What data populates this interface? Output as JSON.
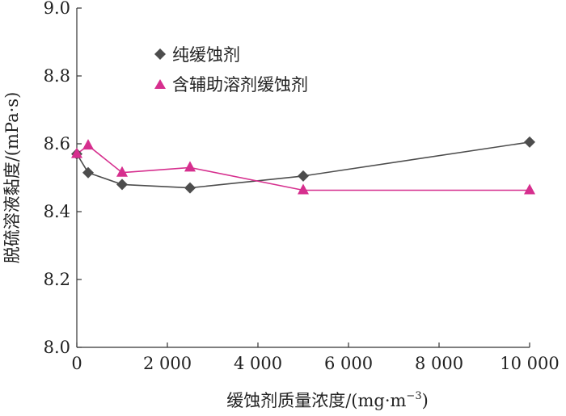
{
  "chart_data": {
    "type": "line",
    "xlabel": "缓蚀剂质量浓度/(mg·m",
    "xlabel_sup": "−3",
    "xlabel_close": ")",
    "ylabel": "脱硫溶液黏度/(mPa·s)",
    "xlim": [
      0,
      10000
    ],
    "ylim": [
      8.0,
      9.0
    ],
    "x_ticks": [
      0,
      2000,
      4000,
      6000,
      8000,
      10000
    ],
    "x_tick_labels": [
      "0",
      "2 000",
      "4 000",
      "6 000",
      "8 000",
      "10 000"
    ],
    "y_ticks": [
      8.0,
      8.2,
      8.4,
      8.6,
      8.8,
      9.0
    ],
    "y_tick_labels": [
      "8.0",
      "8.2",
      "8.4",
      "8.6",
      "8.8",
      "9.0"
    ],
    "grid": false,
    "legend_position": "top-left",
    "series": [
      {
        "name": "纯缓蚀剂",
        "marker": "diamond",
        "color": "#4d4d4d",
        "x": [
          0,
          250,
          1000,
          2500,
          5000,
          10000
        ],
        "y": [
          8.57,
          8.515,
          8.48,
          8.47,
          8.505,
          8.605
        ]
      },
      {
        "name": "含辅助溶剂缓蚀剂",
        "marker": "triangle",
        "color": "#d62f8e",
        "x": [
          0,
          250,
          1000,
          2500,
          5000,
          10000
        ],
        "y": [
          8.57,
          8.595,
          8.515,
          8.53,
          8.463,
          8.463
        ]
      }
    ]
  }
}
